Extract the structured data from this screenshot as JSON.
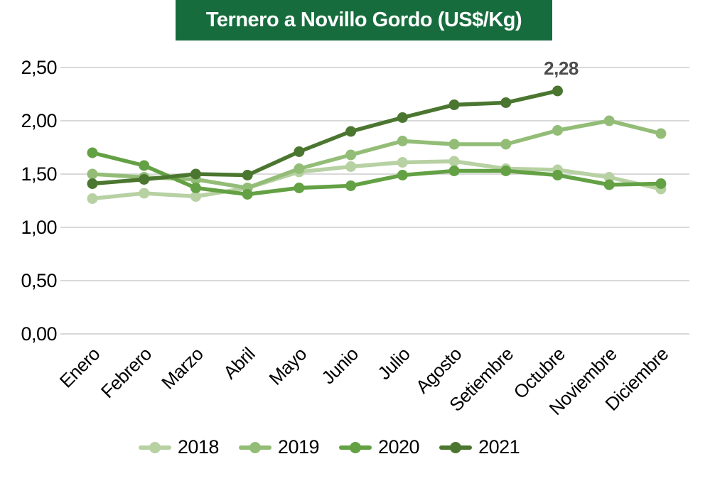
{
  "title": "Ternero a Novillo Gordo (US$/Kg)",
  "banner_color": "#176c3e",
  "chart_data": {
    "type": "line",
    "title": "Ternero a Novillo Gordo (US$/Kg)",
    "xlabel": "",
    "ylabel": "US$/Kg",
    "ylim": [
      0,
      2.6
    ],
    "grid": true,
    "grid_color": "#d9d9d9",
    "legend_position": "bottom",
    "categories": [
      "Enero",
      "Febrero",
      "Marzo",
      "Abril",
      "Mayo",
      "Junio",
      "Julio",
      "Agosto",
      "Setiembre",
      "Octubre",
      "Noviembre",
      "Diciembre"
    ],
    "y_ticks": [
      {
        "value": 0.0,
        "label": "0,00"
      },
      {
        "value": 0.5,
        "label": "0,50"
      },
      {
        "value": 1.0,
        "label": "1,00"
      },
      {
        "value": 1.5,
        "label": "1,50"
      },
      {
        "value": 2.0,
        "label": "2,00"
      },
      {
        "value": 2.5,
        "label": "2,50"
      }
    ],
    "series": [
      {
        "name": "2018",
        "color": "#b7d1a3",
        "values": [
          1.27,
          1.32,
          1.29,
          1.37,
          1.52,
          1.57,
          1.61,
          1.62,
          1.55,
          1.54,
          1.47,
          1.36
        ]
      },
      {
        "name": "2019",
        "color": "#93bd77",
        "values": [
          1.5,
          1.47,
          1.45,
          1.37,
          1.55,
          1.68,
          1.81,
          1.78,
          1.78,
          1.91,
          2.0,
          1.88
        ]
      },
      {
        "name": "2020",
        "color": "#63a144",
        "values": [
          1.7,
          1.58,
          1.37,
          1.31,
          1.37,
          1.39,
          1.49,
          1.53,
          1.53,
          1.49,
          1.4,
          1.41
        ]
      },
      {
        "name": "2021",
        "color": "#4b7630",
        "values": [
          1.41,
          1.45,
          1.5,
          1.49,
          1.71,
          1.9,
          2.03,
          2.15,
          2.17,
          2.28
        ]
      }
    ],
    "annotation": {
      "text": "2,28",
      "series": "2021",
      "point_index": 9,
      "color": "#4d4d4d"
    }
  }
}
